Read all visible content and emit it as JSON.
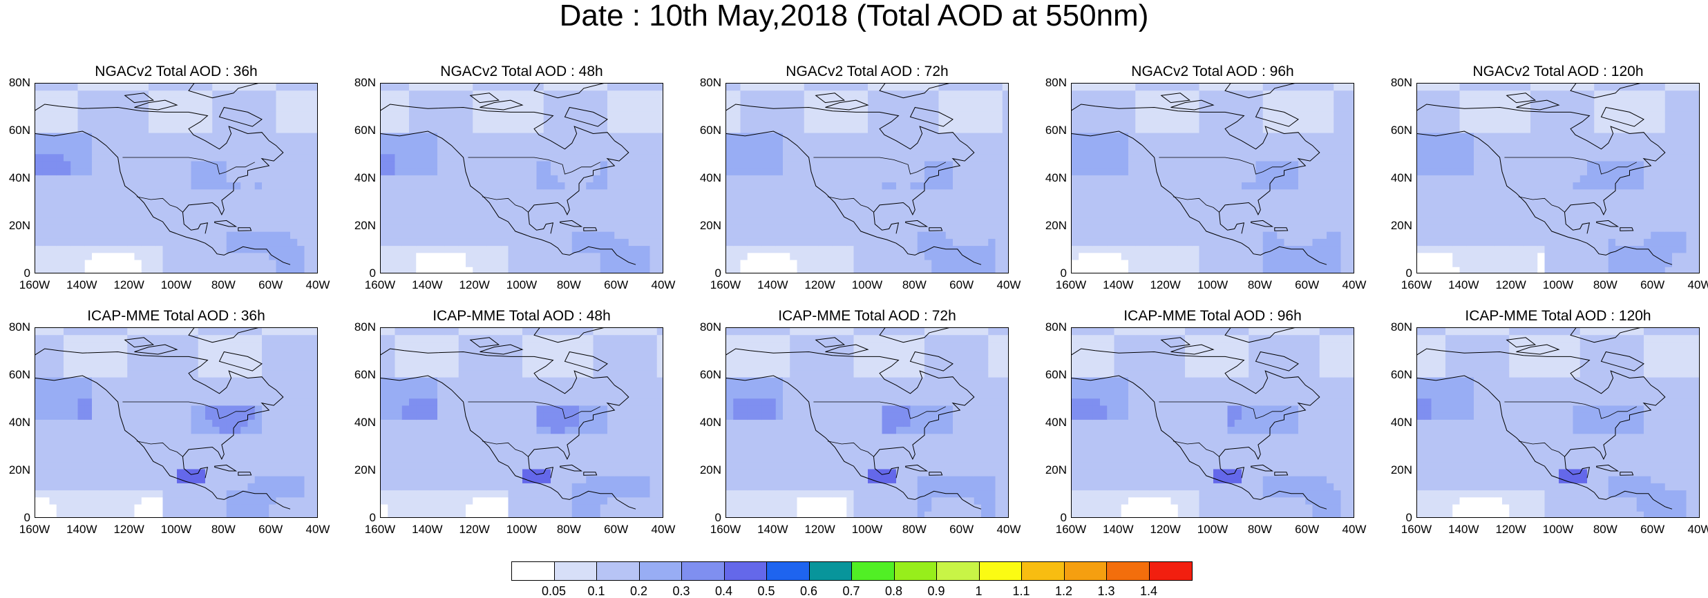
{
  "title": "Date : 10th May,2018 (Total AOD at 550nm)",
  "panels": [
    {
      "title": "NGACv2 Total AOD : 36h",
      "model": "NGACv2",
      "lead": "36h",
      "level": 1
    },
    {
      "title": "NGACv2 Total AOD : 48h",
      "model": "NGACv2",
      "lead": "48h",
      "level": 1
    },
    {
      "title": "NGACv2 Total AOD : 72h",
      "model": "NGACv2",
      "lead": "72h",
      "level": 1
    },
    {
      "title": "NGACv2 Total AOD : 96h",
      "model": "NGACv2",
      "lead": "96h",
      "level": 1
    },
    {
      "title": "NGACv2 Total AOD : 120h",
      "model": "NGACv2",
      "lead": "120h",
      "level": 1
    },
    {
      "title": "ICAP-MME Total AOD : 36h",
      "model": "ICAP-MME",
      "lead": "36h",
      "level": 2
    },
    {
      "title": "ICAP-MME Total AOD : 48h",
      "model": "ICAP-MME",
      "lead": "48h",
      "level": 2
    },
    {
      "title": "ICAP-MME Total AOD : 72h",
      "model": "ICAP-MME",
      "lead": "72h",
      "level": 2
    },
    {
      "title": "ICAP-MME Total AOD : 96h",
      "model": "ICAP-MME",
      "lead": "96h",
      "level": 2
    },
    {
      "title": "ICAP-MME Total AOD : 120h",
      "model": "ICAP-MME",
      "lead": "120h",
      "level": 2
    }
  ],
  "y_ticks": [
    "80N",
    "60N",
    "40N",
    "20N",
    "0"
  ],
  "x_ticks": [
    "160W",
    "140W",
    "120W",
    "100W",
    "80W",
    "60W",
    "40W"
  ],
  "colorbar": {
    "colors": [
      "#ffffff",
      "#d7dff8",
      "#b7c4f5",
      "#98adf4",
      "#7f8ff0",
      "#6468ea",
      "#1e64ef",
      "#08959b",
      "#51ef25",
      "#97ee1b",
      "#c8f446",
      "#fbfb13",
      "#f8bd11",
      "#f59f10",
      "#f36e0c",
      "#f21f0f"
    ],
    "labels": [
      "0.05",
      "0.1",
      "0.2",
      "0.3",
      "0.4",
      "0.5",
      "0.6",
      "0.7",
      "0.8",
      "0.9",
      "1",
      "1.1",
      "1.2",
      "1.3",
      "1.4"
    ]
  }
}
